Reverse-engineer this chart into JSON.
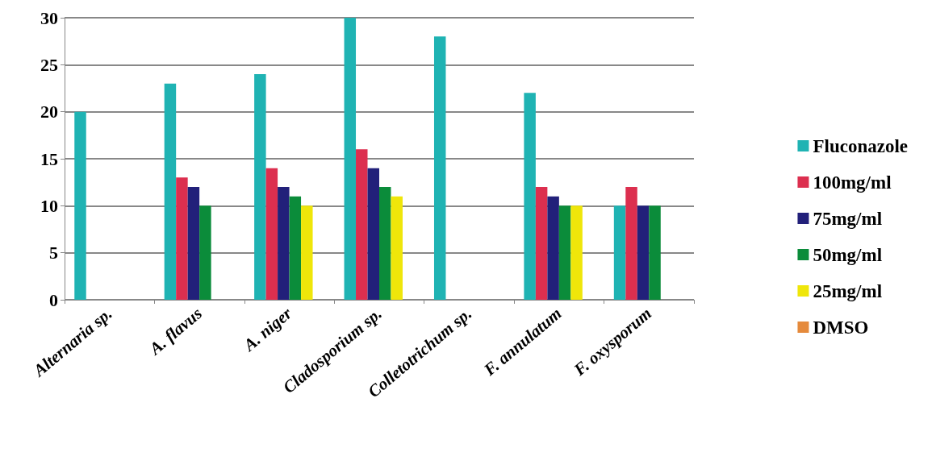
{
  "chart_data": {
    "type": "bar",
    "categories": [
      "Alternaria sp.",
      "A. flavus",
      "A. niger",
      "Cladosporium sp.",
      "Colletotrichum sp.",
      "F. annulatum",
      "F. oxysporum"
    ],
    "series": [
      {
        "name": "Fluconazole",
        "color": "#1fb3b3",
        "values": [
          20,
          23,
          24,
          30,
          28,
          22,
          10
        ]
      },
      {
        "name": "100mg/ml",
        "color": "#dc2f4f",
        "values": [
          0,
          13,
          14,
          16,
          0,
          12,
          12
        ]
      },
      {
        "name": "75mg/ml",
        "color": "#22207a",
        "values": [
          0,
          12,
          12,
          14,
          0,
          11,
          10
        ]
      },
      {
        "name": "50mg/ml",
        "color": "#0b8c3a",
        "values": [
          0,
          10,
          11,
          12,
          0,
          10,
          10
        ]
      },
      {
        "name": "25mg/ml",
        "color": "#efe60a",
        "values": [
          0,
          0,
          10,
          11,
          0,
          10,
          0
        ]
      },
      {
        "name": "DMSO",
        "color": "#e58a3c",
        "values": [
          0,
          0,
          0,
          0,
          0,
          0,
          0
        ]
      }
    ],
    "ylim": [
      0,
      30
    ],
    "yticks": [
      0,
      5,
      10,
      15,
      20,
      25,
      30
    ],
    "grid": "y",
    "legend": "right"
  }
}
